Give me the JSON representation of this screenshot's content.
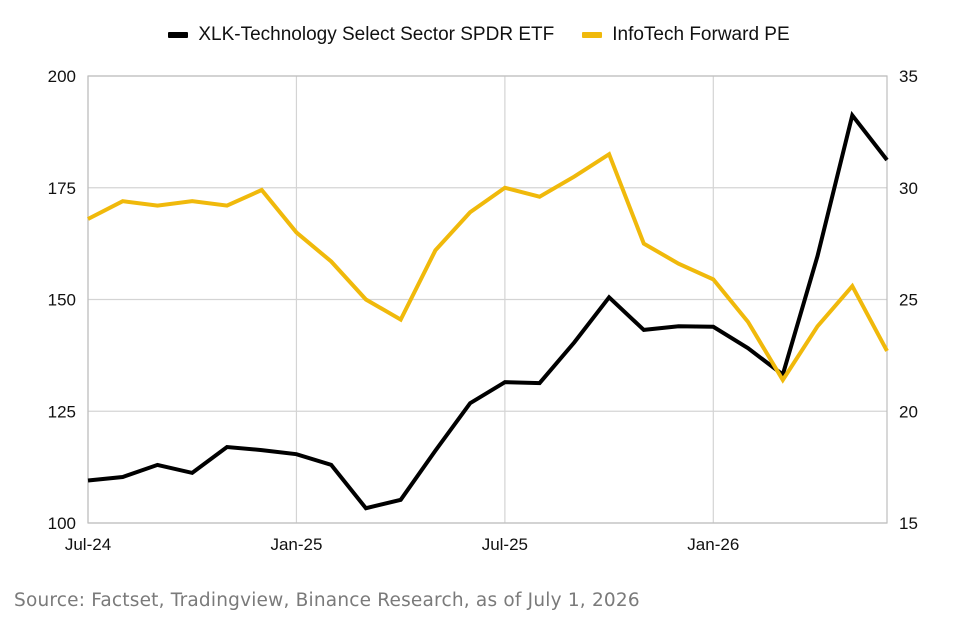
{
  "chart_data": {
    "type": "line",
    "x": [
      "Jul-24",
      "Aug-24",
      "Sep-24",
      "Oct-24",
      "Nov-24",
      "Dec-24",
      "Jan-25",
      "Feb-25",
      "Mar-25",
      "Apr-25",
      "May-25",
      "Jun-25",
      "Jul-25",
      "Aug-25",
      "Sep-25",
      "Oct-25",
      "Nov-25",
      "Dec-25",
      "Jan-26",
      "Feb-26",
      "Mar-26",
      "Apr-26",
      "May-26",
      "Jun-26"
    ],
    "x_tick_labels": [
      "Jul-24",
      "Jan-25",
      "Jul-25",
      "Jan-26"
    ],
    "x_tick_indices": [
      0,
      6,
      12,
      18
    ],
    "series": [
      {
        "name": "XLK-Technology Select Sector SPDR ETF",
        "axis": "left",
        "color": "#000000",
        "values": [
          109.5,
          110.3,
          113,
          111.2,
          117,
          116.3,
          115.4,
          113,
          103.3,
          105.2,
          116.2,
          126.8,
          131.5,
          131.3,
          140.4,
          150.5,
          143.2,
          144.0,
          143.9,
          139.1,
          133.2,
          159.7,
          191.2,
          181.2
        ]
      },
      {
        "name": "InfoTech Forward PE",
        "axis": "right",
        "color": "#F0B90B",
        "values": [
          28.6,
          29.4,
          29.2,
          29.4,
          29.2,
          29.9,
          28.0,
          26.7,
          25.0,
          24.1,
          27.2,
          28.9,
          30.0,
          29.6,
          30.5,
          31.5,
          27.5,
          26.6,
          25.9,
          24.0,
          21.4,
          23.8,
          25.6,
          22.7
        ]
      }
    ],
    "y_left": {
      "ylim": [
        100,
        200
      ],
      "ticks": [
        "100",
        "125",
        "150",
        "175",
        "200"
      ]
    },
    "y_right": {
      "ylim": [
        15,
        35
      ],
      "ticks": [
        "15",
        "20",
        "25",
        "30",
        "35"
      ]
    },
    "grid": true,
    "legend_position": "top-center"
  },
  "source": "Source: Factset, Tradingview, Binance Research, as of July 1, 2026"
}
